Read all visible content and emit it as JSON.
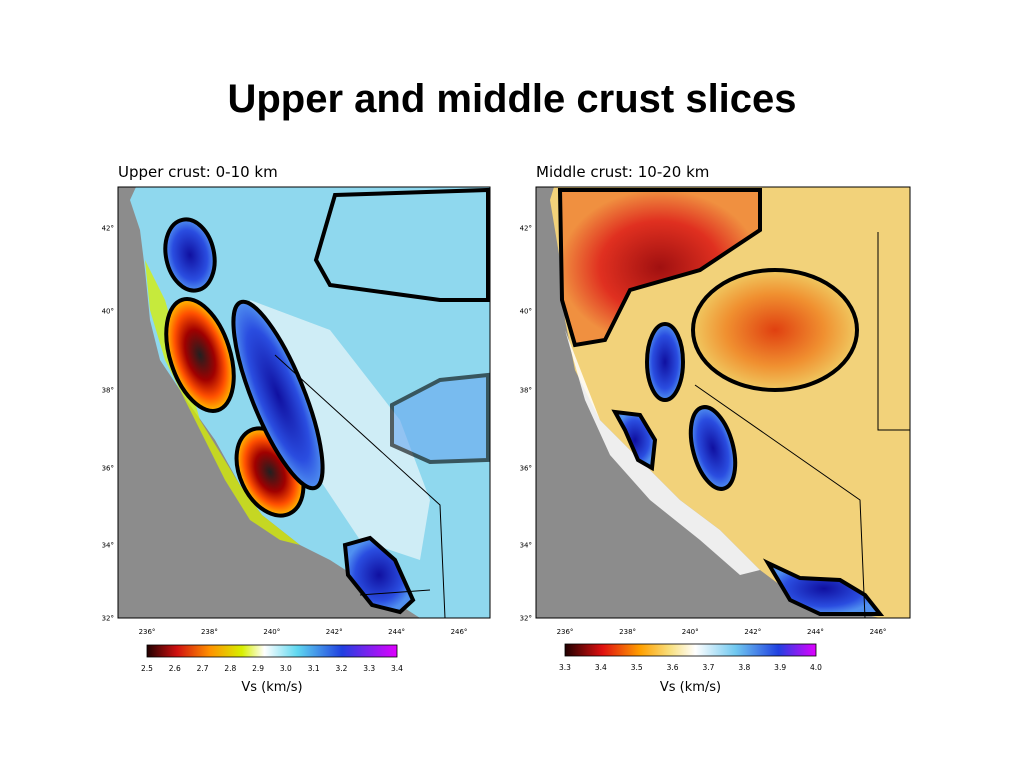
{
  "title": "Upper and middle crust slices",
  "panels": [
    {
      "label": "Upper crust: 0-10 km",
      "lat_labels": [
        "42°",
        "40°",
        "38°",
        "36°",
        "34°",
        "32°"
      ],
      "lon_labels": [
        "236°",
        "238°",
        "240°",
        "242°",
        "244°",
        "246°"
      ],
      "colorbar_ticks": [
        "2.5",
        "2.6",
        "2.7",
        "2.8",
        "2.9",
        "3.0",
        "3.1",
        "3.2",
        "3.3",
        "3.4"
      ],
      "colorbar_title": "Vs (km/s)"
    },
    {
      "label": "Middle crust: 10-20 km",
      "lat_labels": [
        "42°",
        "40°",
        "38°",
        "36°",
        "34°",
        "32°"
      ],
      "lon_labels": [
        "236°",
        "238°",
        "240°",
        "242°",
        "244°",
        "246°"
      ],
      "colorbar_ticks": [
        "3.3",
        "3.4",
        "3.5",
        "3.6",
        "3.7",
        "3.8",
        "3.9",
        "4.0"
      ],
      "colorbar_title": "Vs (km/s)"
    }
  ]
}
